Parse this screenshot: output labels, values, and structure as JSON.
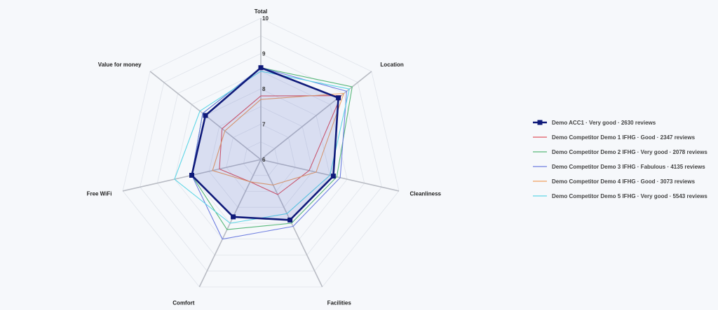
{
  "chart_data": {
    "type": "radar",
    "axes": [
      "Total",
      "Location",
      "Cleanliness",
      "Facilities",
      "Comfort",
      "Free WiFi",
      "Value for money"
    ],
    "rlim": [
      6,
      10
    ],
    "ticks": [
      "6",
      "7",
      "8",
      "9",
      "10"
    ],
    "grid": true,
    "legend_position": "right",
    "series": [
      {
        "name": "Demo ACC1 · Very good · 2630 reviews",
        "color": "#0f1a7a",
        "fill": true,
        "marker": "square",
        "values": [
          8.6,
          8.8,
          8.1,
          7.9,
          7.8,
          8.0,
          8.0
        ]
      },
      {
        "name": "Demo Competitor Demo 1 IFHG · Good · 2347 reviews",
        "color": "#e0555f",
        "values": [
          7.8,
          8.9,
          7.4,
          7.1,
          6.7,
          7.2,
          7.4
        ]
      },
      {
        "name": "Demo Competitor Demo 2 IFHG · Very good · 2078 reviews",
        "color": "#58b87a",
        "values": [
          8.6,
          9.3,
          8.2,
          8.0,
          8.2,
          8.0,
          8.1
        ]
      },
      {
        "name": "Demo Competitor Demo 3 IFHG · Fabulous · 4135 reviews",
        "color": "#6f7fe0",
        "values": [
          8.6,
          9.1,
          8.3,
          8.1,
          8.5,
          8.0,
          8.1
        ]
      },
      {
        "name": "Demo Competitor Demo 4 IFHG · Good · 3073 reviews",
        "color": "#f0a060",
        "values": [
          7.7,
          9.0,
          7.6,
          6.8,
          6.7,
          7.4,
          7.3
        ]
      },
      {
        "name": "Demo Competitor Demo 5 IFHG · Very good · 5543 reviews",
        "color": "#5fd6e6",
        "values": [
          8.5,
          9.2,
          8.0,
          7.7,
          8.0,
          8.5,
          8.2
        ]
      }
    ]
  }
}
